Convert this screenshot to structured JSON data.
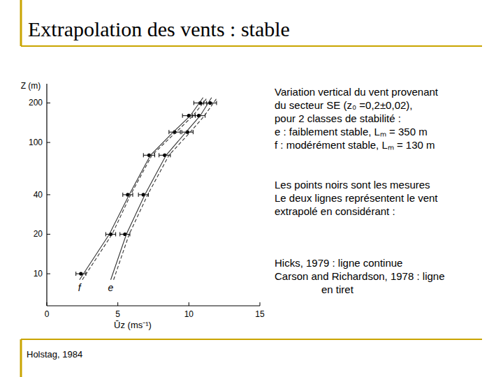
{
  "slide": {
    "title": "Extrapolation des vents : stable",
    "caption": [
      "Variation vertical du vent provenant",
      "du secteur SE (z₀ =0,2±0,02),",
      "pour 2 classes de stabilité :",
      "e : faiblement stable, Lₘ = 350 m",
      "f : modérément stable, Lₘ =  130 m"
    ],
    "notes": [
      "Les points noirs sont les mesures",
      "Le deux lignes représentent le vent",
      "extrapolé en considérant :"
    ],
    "methods": [
      "Hicks, 1979 : ligne continue",
      "Carson and Richardson, 1978 : ligne",
      "en tiret"
    ],
    "source": "Holstag, 1984"
  },
  "chart_data": {
    "type": "scatter",
    "xlabel": "Ūz (ms⁻¹)",
    "ylabel": "Z (m)",
    "xlim": [
      0,
      15
    ],
    "xticks": [
      0,
      5,
      10,
      15
    ],
    "ylim": [
      5.7,
      280
    ],
    "yticks": [
      10,
      20,
      40,
      100,
      200
    ],
    "log": "y",
    "grid": false,
    "series": [
      {
        "name": "f",
        "type": "scatter",
        "marker": "circle",
        "color": "#000000",
        "y": [
          10,
          20,
          40,
          80,
          120,
          160,
          200
        ],
        "x": [
          2.4,
          4.5,
          5.7,
          7.2,
          9.0,
          10.0,
          10.8
        ],
        "xerr": [
          0.35,
          0.35,
          0.35,
          0.4,
          0.4,
          0.45,
          0.45
        ]
      },
      {
        "name": "e",
        "type": "scatter",
        "marker": "circle",
        "color": "#000000",
        "y": [
          20,
          40,
          80,
          120,
          160,
          200
        ],
        "x": [
          5.5,
          6.8,
          8.3,
          9.9,
          10.7,
          11.5
        ],
        "xerr": [
          0.35,
          0.35,
          0.4,
          0.4,
          0.45,
          0.45
        ]
      },
      {
        "type": "line",
        "line_style": "solid",
        "color": "#333333",
        "y": [
          9,
          20,
          40,
          80,
          120,
          160,
          220
        ],
        "x": [
          2.3,
          4.4,
          5.8,
          7.3,
          8.9,
          10.1,
          11.0
        ]
      },
      {
        "type": "line",
        "line_style": "dashed",
        "color": "#333333",
        "y": [
          9,
          20,
          40,
          80,
          120,
          160,
          220
        ],
        "x": [
          2.5,
          4.6,
          5.9,
          7.4,
          9.1,
          10.3,
          11.3
        ]
      },
      {
        "type": "line",
        "line_style": "solid",
        "color": "#333333",
        "y": [
          9,
          20,
          40,
          80,
          120,
          160,
          220
        ],
        "x": [
          4.5,
          5.6,
          6.9,
          8.4,
          9.8,
          10.8,
          11.6
        ]
      },
      {
        "type": "line",
        "line_style": "dashed",
        "color": "#333333",
        "y": [
          9,
          20,
          40,
          80,
          120,
          160,
          220
        ],
        "x": [
          4.7,
          5.8,
          7.1,
          8.6,
          10.1,
          11.1,
          12.0
        ]
      }
    ]
  }
}
